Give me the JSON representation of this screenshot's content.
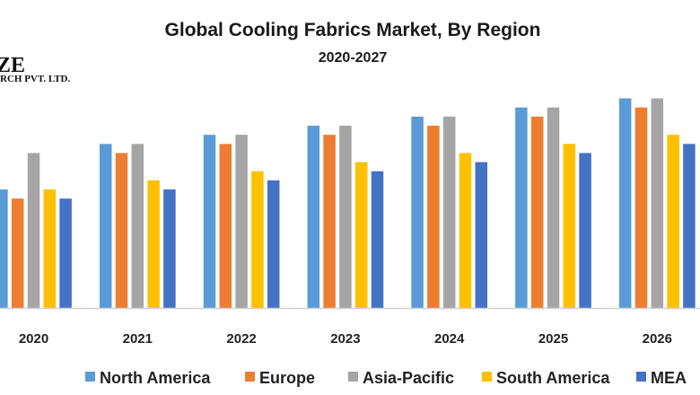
{
  "logo": {
    "line1": "ZE",
    "line2": "RCH PVT. LTD."
  },
  "chart_data": {
    "type": "bar",
    "title": "Global Cooling Fabrics Market, By Region",
    "subtitle": "2020-2027",
    "xlabel": "",
    "ylabel": "",
    "y_axis_shown": false,
    "ylim": [
      0,
      24
    ],
    "grid": false,
    "legend_position": "bottom",
    "categories": [
      "2020",
      "2021",
      "2022",
      "2023",
      "2024",
      "2025",
      "2026"
    ],
    "series": [
      {
        "name": "North America",
        "color": "#5B9BD5",
        "values": [
          13,
          18,
          19,
          20,
          21,
          22,
          23
        ]
      },
      {
        "name": "Europe",
        "color": "#ED7D31",
        "values": [
          12,
          17,
          18,
          19,
          20,
          21,
          22
        ]
      },
      {
        "name": "Asia-Pacific",
        "color": "#A5A5A5",
        "values": [
          17,
          18,
          19,
          20,
          21,
          22,
          23
        ]
      },
      {
        "name": "South America",
        "color": "#FFC000",
        "values": [
          13,
          14,
          15,
          16,
          17,
          18,
          19
        ]
      },
      {
        "name": "MEA",
        "color": "#4472C4",
        "values": [
          12,
          13,
          14,
          15,
          16,
          17,
          18
        ]
      }
    ]
  }
}
